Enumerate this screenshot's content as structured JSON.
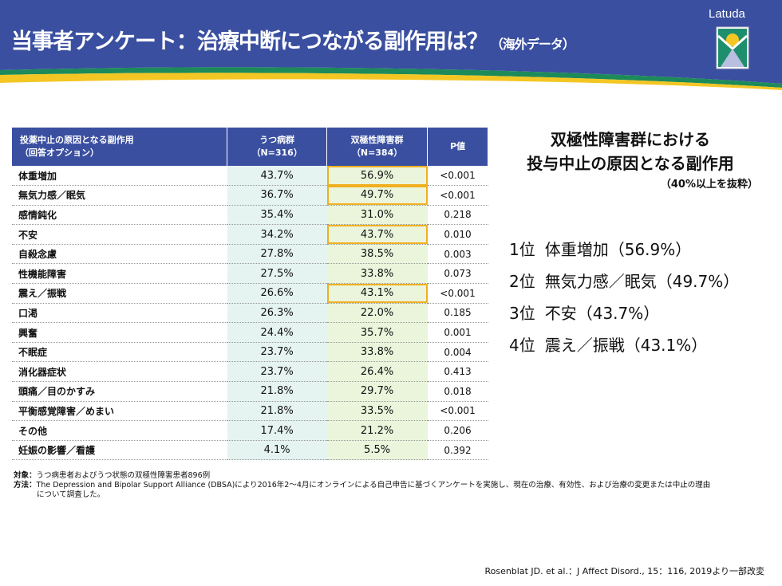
{
  "header": {
    "title": "当事者アンケート：治療中断につながる副作用は？",
    "title_sub": "（海外データ）",
    "brand": "Latuda"
  },
  "table": {
    "headers": [
      {
        "line1": "投薬中止の原因となる副作用",
        "line2": "（回答オプション）"
      },
      {
        "line1": "うつ病群",
        "line2": "（N=316）"
      },
      {
        "line1": "双極性障害群",
        "line2": "（N=384）"
      },
      {
        "line1": "P値",
        "line2": ""
      }
    ],
    "rows": [
      {
        "label": "体重増加",
        "dep": "43.7%",
        "bip": "56.9%",
        "p": "<0.001",
        "hl": true
      },
      {
        "label": "無気力感／眠気",
        "dep": "36.7%",
        "bip": "49.7%",
        "p": "<0.001",
        "hl": true
      },
      {
        "label": "感情鈍化",
        "dep": "35.4%",
        "bip": "31.0%",
        "p": "0.218",
        "hl": false
      },
      {
        "label": "不安",
        "dep": "34.2%",
        "bip": "43.7%",
        "p": "0.010",
        "hl": true
      },
      {
        "label": "自殺念慮",
        "dep": "27.8%",
        "bip": "38.5%",
        "p": "0.003",
        "hl": false
      },
      {
        "label": "性機能障害",
        "dep": "27.5%",
        "bip": "33.8%",
        "p": "0.073",
        "hl": false
      },
      {
        "label": "震え／振戦",
        "dep": "26.6%",
        "bip": "43.1%",
        "p": "<0.001",
        "hl": true
      },
      {
        "label": "口渇",
        "dep": "26.3%",
        "bip": "22.0%",
        "p": "0.185",
        "hl": false
      },
      {
        "label": "興奮",
        "dep": "24.4%",
        "bip": "35.7%",
        "p": "0.001",
        "hl": false
      },
      {
        "label": "不眠症",
        "dep": "23.7%",
        "bip": "33.8%",
        "p": "0.004",
        "hl": false
      },
      {
        "label": "消化器症状",
        "dep": "23.7%",
        "bip": "26.4%",
        "p": "0.413",
        "hl": false
      },
      {
        "label": "頭痛／目のかすみ",
        "dep": "21.8%",
        "bip": "29.7%",
        "p": "0.018",
        "hl": false
      },
      {
        "label": "平衡感覚障害／めまい",
        "dep": "21.8%",
        "bip": "33.5%",
        "p": "<0.001",
        "hl": false
      },
      {
        "label": "その他",
        "dep": "17.4%",
        "bip": "21.2%",
        "p": "0.206",
        "hl": false
      },
      {
        "label": "妊娠の影響／看護",
        "dep": "4.1%",
        "bip": "5.5%",
        "p": "0.392",
        "hl": false
      }
    ]
  },
  "summary": {
    "title1": "双極性障害群における",
    "title2": "投与中止の原因となる副作用",
    "note": "（40%以上を抜粋）",
    "ranks": [
      {
        "rank": "1位",
        "text": "体重増加（56.9%）"
      },
      {
        "rank": "2位",
        "text": "無気力感／眠気（49.7%）"
      },
      {
        "rank": "3位",
        "text": "不安（43.7%）"
      },
      {
        "rank": "4位",
        "text": "震え／振戦（43.1%）"
      }
    ]
  },
  "notes": {
    "subject_label": "対象：",
    "subject": "うつ病患者およびうつ状態の双極性障害患者896例",
    "method_label": "方法：",
    "method1": "The Depression and Bipolar Support Alliance (DBSA)により2016年2～4月にオンラインによる自己申告に基づくアンケートを実施し、現在の治療、有効性、および治療の変更または中止の理由",
    "method2": "について調査した。"
  },
  "citation": "Rosenblat JD. et al.：J Affect Disord., 15：116, 2019より一部改変",
  "colors": {
    "header_blue": "#3a4fa0",
    "highlight": "#f0b020"
  }
}
